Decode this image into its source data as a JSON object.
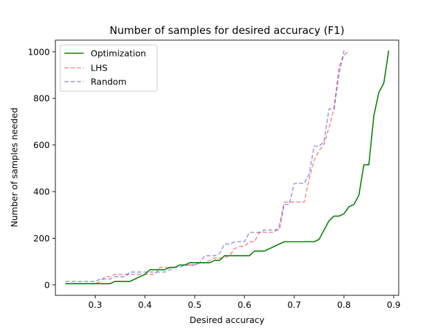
{
  "chart_data": {
    "type": "line",
    "title": "Number of samples for desired accuracy (F1)",
    "xlabel": "Desired accuracy",
    "ylabel": "Number of samples needed",
    "xlim": [
      0.22,
      0.91
    ],
    "ylim": [
      -45,
      1050
    ],
    "xticks": [
      0.3,
      0.4,
      0.5,
      0.6,
      0.7,
      0.8,
      0.9
    ],
    "xtick_labels": [
      "0.3",
      "0.4",
      "0.5",
      "0.6",
      "0.7",
      "0.8",
      "0.9"
    ],
    "yticks": [
      0,
      200,
      400,
      600,
      800,
      1000
    ],
    "ytick_labels": [
      "0",
      "200",
      "400",
      "600",
      "800",
      "1000"
    ],
    "grid": false,
    "legend_position": "top-left",
    "series": [
      {
        "name": "Optimization",
        "color": "#008000",
        "dashed": false,
        "alpha": 1.0,
        "x": [
          0.24,
          0.25,
          0.26,
          0.27,
          0.28,
          0.29,
          0.3,
          0.31,
          0.32,
          0.33,
          0.34,
          0.35,
          0.36,
          0.37,
          0.38,
          0.39,
          0.4,
          0.41,
          0.42,
          0.43,
          0.44,
          0.45,
          0.46,
          0.47,
          0.48,
          0.49,
          0.5,
          0.51,
          0.52,
          0.53,
          0.54,
          0.55,
          0.56,
          0.57,
          0.58,
          0.59,
          0.6,
          0.61,
          0.62,
          0.63,
          0.64,
          0.65,
          0.66,
          0.67,
          0.68,
          0.69,
          0.7,
          0.71,
          0.72,
          0.73,
          0.74,
          0.75,
          0.76,
          0.77,
          0.78,
          0.79,
          0.8,
          0.81,
          0.82,
          0.83,
          0.84,
          0.85,
          0.86,
          0.87,
          0.88,
          0.89
        ],
        "y": [
          5,
          5,
          5,
          5,
          5,
          5,
          5,
          5,
          5,
          5,
          15,
          15,
          15,
          15,
          25,
          35,
          45,
          65,
          65,
          65,
          65,
          75,
          75,
          85,
          85,
          95,
          95,
          95,
          95,
          95,
          105,
          105,
          125,
          125,
          125,
          125,
          125,
          125,
          145,
          145,
          145,
          155,
          165,
          175,
          185,
          185,
          185,
          185,
          185,
          185,
          185,
          195,
          235,
          275,
          295,
          295,
          305,
          335,
          345,
          385,
          515,
          515,
          725,
          825,
          865,
          1005
        ]
      },
      {
        "name": "LHS",
        "color": "#ff0000",
        "dashed": true,
        "alpha": 0.45,
        "x": [
          0.24,
          0.25,
          0.26,
          0.27,
          0.28,
          0.29,
          0.3,
          0.31,
          0.32,
          0.33,
          0.34,
          0.35,
          0.36,
          0.37,
          0.38,
          0.39,
          0.4,
          0.41,
          0.42,
          0.43,
          0.44,
          0.45,
          0.46,
          0.47,
          0.48,
          0.49,
          0.5,
          0.51,
          0.52,
          0.53,
          0.54,
          0.55,
          0.56,
          0.57,
          0.58,
          0.59,
          0.6,
          0.61,
          0.62,
          0.63,
          0.64,
          0.65,
          0.66,
          0.67,
          0.68,
          0.69,
          0.7,
          0.71,
          0.72,
          0.73,
          0.74,
          0.75,
          0.76,
          0.77,
          0.78,
          0.79,
          0.8,
          0.81
        ],
        "y": [
          5,
          5,
          5,
          5,
          5,
          5,
          5,
          15,
          35,
          35,
          45,
          45,
          45,
          45,
          45,
          45,
          45,
          45,
          45,
          75,
          75,
          75,
          75,
          85,
          85,
          85,
          85,
          95,
          95,
          105,
          115,
          115,
          115,
          125,
          155,
          165,
          165,
          185,
          185,
          225,
          225,
          225,
          225,
          255,
          355,
          355,
          355,
          355,
          355,
          455,
          535,
          575,
          605,
          675,
          755,
          935,
          985,
          1005
        ]
      },
      {
        "name": "Random",
        "color": "#0000dd",
        "dashed": true,
        "alpha": 0.4,
        "x": [
          0.24,
          0.25,
          0.26,
          0.27,
          0.28,
          0.29,
          0.3,
          0.31,
          0.32,
          0.33,
          0.34,
          0.35,
          0.36,
          0.37,
          0.38,
          0.39,
          0.4,
          0.41,
          0.42,
          0.43,
          0.44,
          0.45,
          0.46,
          0.47,
          0.48,
          0.49,
          0.5,
          0.51,
          0.52,
          0.53,
          0.54,
          0.55,
          0.56,
          0.57,
          0.58,
          0.59,
          0.6,
          0.61,
          0.62,
          0.63,
          0.64,
          0.65,
          0.66,
          0.67,
          0.68,
          0.69,
          0.7,
          0.71,
          0.72,
          0.73,
          0.74,
          0.75,
          0.76,
          0.77,
          0.78,
          0.79,
          0.8
        ],
        "y": [
          15,
          15,
          15,
          15,
          15,
          15,
          15,
          25,
          25,
          25,
          35,
          35,
          35,
          55,
          55,
          55,
          55,
          55,
          55,
          55,
          55,
          65,
          75,
          75,
          85,
          85,
          85,
          95,
          125,
          125,
          125,
          135,
          175,
          175,
          185,
          185,
          185,
          225,
          225,
          225,
          235,
          235,
          235,
          235,
          345,
          345,
          435,
          435,
          435,
          475,
          595,
          595,
          615,
          755,
          755,
          905,
          1005
        ]
      }
    ]
  }
}
